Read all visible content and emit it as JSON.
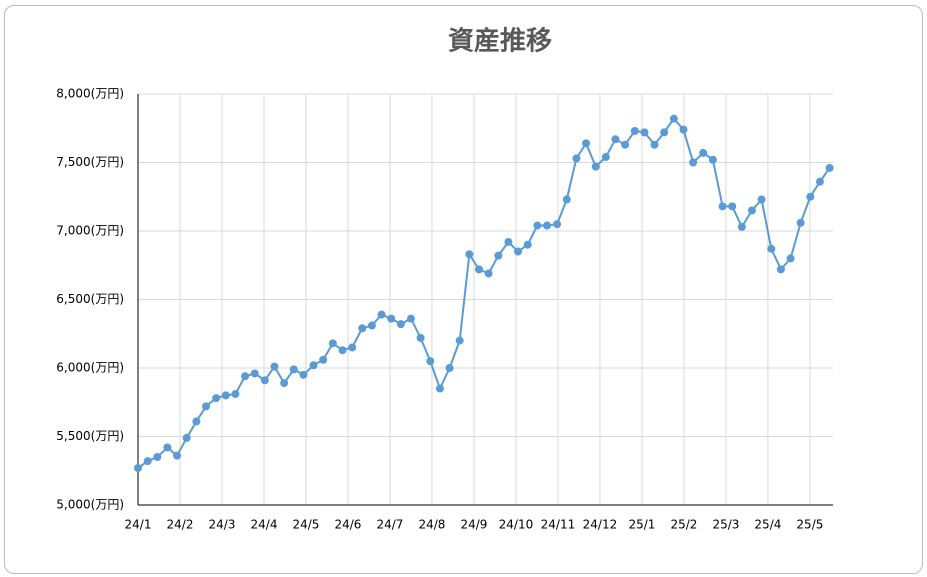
{
  "chart_data": {
    "type": "line",
    "title": "資産推移",
    "x": [
      0,
      0.23,
      0.46,
      0.7,
      0.93,
      1.16,
      1.39,
      1.62,
      1.86,
      2.09,
      2.32,
      2.55,
      2.78,
      3.02,
      3.25,
      3.48,
      3.71,
      3.94,
      4.18,
      4.41,
      4.64,
      4.87,
      5.1,
      5.34,
      5.57,
      5.8,
      6.03,
      6.26,
      6.5,
      6.73,
      6.96,
      7.19,
      7.42,
      7.66,
      7.89,
      8.12,
      8.35,
      8.58,
      8.82,
      9.05,
      9.28,
      9.51,
      9.74,
      9.98,
      10.21,
      10.44,
      10.67,
      10.9,
      11.14,
      11.37,
      11.6,
      11.83,
      12.06,
      12.3,
      12.53,
      12.76,
      12.99,
      13.22,
      13.46,
      13.69,
      13.92,
      14.15,
      14.38,
      14.62,
      14.85,
      15.08,
      15.31,
      15.54,
      15.78,
      16.01,
      16.24,
      16.47
    ],
    "values": [
      5270,
      5320,
      5350,
      5420,
      5360,
      5490,
      5610,
      5720,
      5780,
      5800,
      5810,
      5940,
      5960,
      5910,
      6010,
      5890,
      5990,
      5950,
      6020,
      6060,
      6180,
      6130,
      6150,
      6290,
      6310,
      6390,
      6360,
      6320,
      6360,
      6220,
      6050,
      5850,
      6000,
      6200,
      6830,
      6720,
      6690,
      6820,
      6920,
      6850,
      6900,
      7040,
      7040,
      7050,
      7230,
      7530,
      7640,
      7470,
      7540,
      7670,
      7630,
      7730,
      7720,
      7630,
      7720,
      7820,
      7740,
      7500,
      7570,
      7520,
      7180,
      7180,
      7030,
      7150,
      7230,
      6870,
      6720,
      6800,
      7060,
      7250,
      7360,
      7460
    ],
    "color": "#5b9bd5",
    "xlim": [
      0,
      16.55
    ],
    "xticks": [
      {
        "value": 0,
        "label": "24/1"
      },
      {
        "value": 1,
        "label": "24/2"
      },
      {
        "value": 2,
        "label": "24/3"
      },
      {
        "value": 3,
        "label": "24/4"
      },
      {
        "value": 4,
        "label": "24/5"
      },
      {
        "value": 5,
        "label": "24/6"
      },
      {
        "value": 6,
        "label": "24/7"
      },
      {
        "value": 7,
        "label": "24/8"
      },
      {
        "value": 8,
        "label": "24/9"
      },
      {
        "value": 9,
        "label": "24/10"
      },
      {
        "value": 10,
        "label": "24/11"
      },
      {
        "value": 11,
        "label": "24/12"
      },
      {
        "value": 12,
        "label": "25/1"
      },
      {
        "value": 13,
        "label": "25/2"
      },
      {
        "value": 14,
        "label": "25/3"
      },
      {
        "value": 15,
        "label": "25/4"
      },
      {
        "value": 16,
        "label": "25/5"
      }
    ],
    "ylim": [
      5000,
      8000
    ],
    "yticks": [
      {
        "value": 5000,
        "label": "5,000(万円)"
      },
      {
        "value": 5500,
        "label": "5,500(万円)"
      },
      {
        "value": 6000,
        "label": "6,000(万円)"
      },
      {
        "value": 6500,
        "label": "6,500(万円)"
      },
      {
        "value": 7000,
        "label": "7,000(万円)"
      },
      {
        "value": 7500,
        "label": "7,500(万円)"
      },
      {
        "value": 8000,
        "label": "8,000(万円)"
      }
    ],
    "grid": true
  }
}
